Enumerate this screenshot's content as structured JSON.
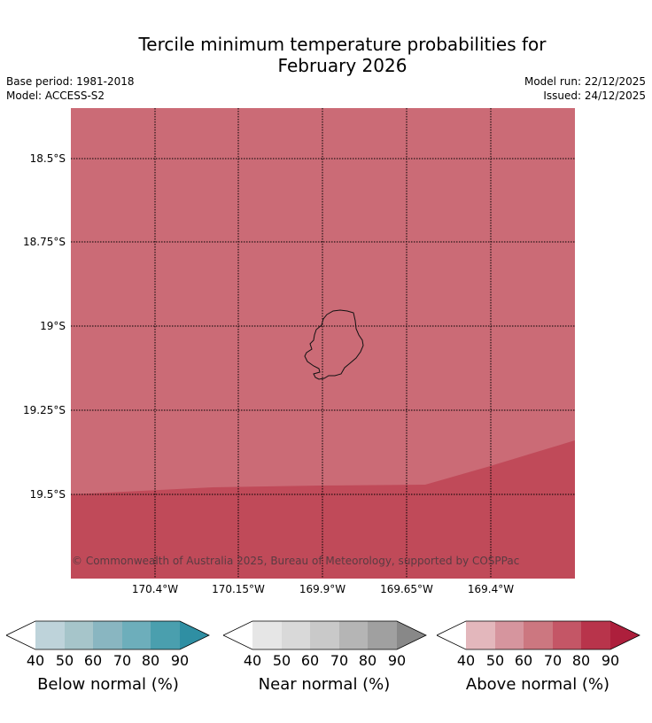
{
  "title_line1": "Tercile minimum temperature probabilities for",
  "title_line2": "February 2026",
  "base_period": "Base period: 1981-2018",
  "model": "Model: ACCESS-S2",
  "model_run": "Model run: 22/12/2025",
  "issued": "Issued: 24/12/2025",
  "map": {
    "latitude_labels": [
      "18.5°S",
      "18.75°S",
      "19°S",
      "19.25°S",
      "19.5°S"
    ],
    "longitude_labels": [
      "170.4°W",
      "170.15°W",
      "169.9°W",
      "169.65°W",
      "169.4°W"
    ],
    "region_fill_primary": "#cb6b76",
    "region_fill_secondary": "#c04a59",
    "copyright": "© Commonwealth of Australia 2025, Bureau of Meteorology, supported by COSPPac"
  },
  "legends": [
    {
      "label": "Below normal (%)",
      "ticks": [
        "40",
        "50",
        "60",
        "70",
        "80",
        "90"
      ],
      "colors": [
        "#ffffff",
        "#bed3da",
        "#a6c5ca",
        "#89b6c1",
        "#6daebb",
        "#4a9fae",
        "#2f8fa3"
      ]
    },
    {
      "label": "Near normal (%)",
      "ticks": [
        "40",
        "50",
        "60",
        "70",
        "80",
        "90"
      ],
      "colors": [
        "#ffffff",
        "#e6e6e6",
        "#d9d9d9",
        "#c9c9c9",
        "#b5b5b5",
        "#a0a0a0",
        "#888888"
      ]
    },
    {
      "label": "Above normal (%)",
      "ticks": [
        "40",
        "50",
        "60",
        "70",
        "80",
        "90"
      ],
      "colors": [
        "#ffffff",
        "#e3b7bc",
        "#d6959e",
        "#cc7780",
        "#c45666",
        "#b8344b",
        "#ad1f3c"
      ]
    }
  ]
}
